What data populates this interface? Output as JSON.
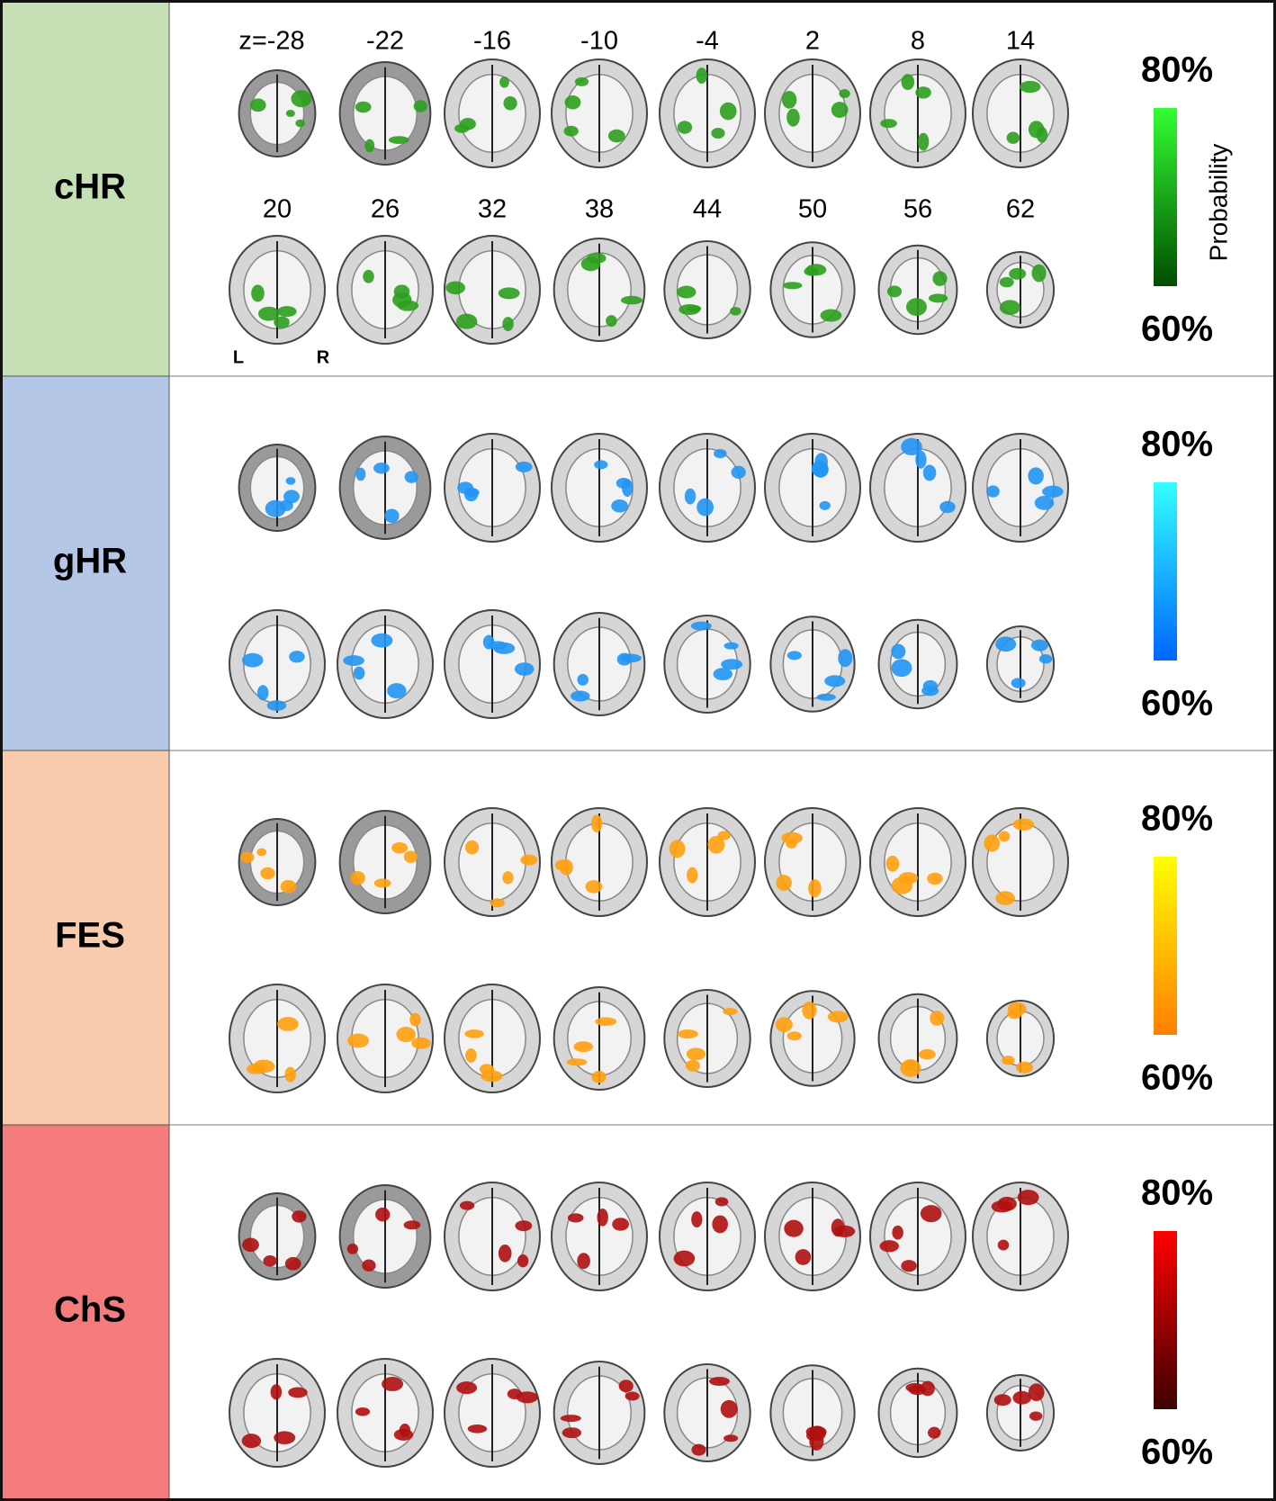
{
  "panels": [
    {
      "label": "cHR",
      "label_bg": "#c5e0b4",
      "blob_color": "#2e9e1e",
      "bar_top": "#33ff33",
      "bar_bottom": "#004d00",
      "max_label": "80%",
      "min_label": "60%"
    },
    {
      "label": "gHR",
      "label_bg": "#b4c7e7",
      "blob_color": "#2196f3",
      "bar_top": "#33ffff",
      "bar_bottom": "#0066ff",
      "max_label": "80%",
      "min_label": "60%"
    },
    {
      "label": "FES",
      "label_bg": "#f8cbad",
      "blob_color": "#ffa010",
      "bar_top": "#ffff00",
      "bar_bottom": "#ff7f00",
      "max_label": "80%",
      "min_label": "60%"
    },
    {
      "label": "ChS",
      "label_bg": "#f47c7c",
      "blob_color": "#b01010",
      "bar_top": "#ff0000",
      "bar_bottom": "#3d0000",
      "max_label": "80%",
      "min_label": "60%"
    }
  ],
  "slice_labels": [
    "z=-28",
    "-22",
    "-16",
    "-10",
    "-4",
    "2",
    "8",
    "14",
    "20",
    "26",
    "32",
    "38",
    "44",
    "50",
    "56",
    "62"
  ],
  "left_label": "L",
  "right_label": "R",
  "colorbar_title": "Probability"
}
